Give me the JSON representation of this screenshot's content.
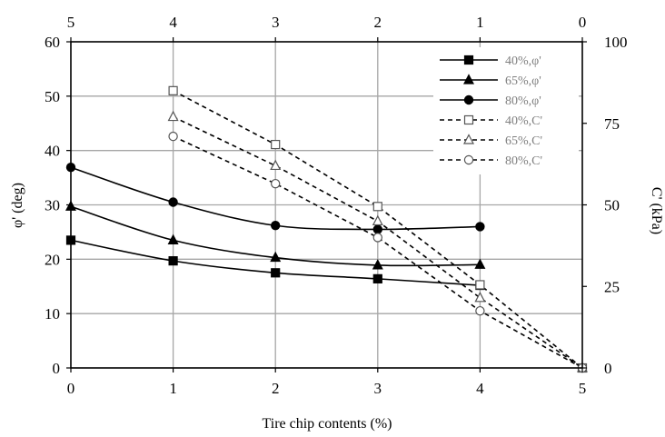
{
  "chart_data": {
    "type": "line",
    "title": "",
    "xlabel": "Tire chip contents (%)",
    "ylabel": "φ' (deg)",
    "y2label": "C' (kPa)",
    "x_bottom_ticks": [
      "0",
      "1",
      "2",
      "3",
      "4",
      "5"
    ],
    "x_top_ticks": [
      "5",
      "4",
      "3",
      "2",
      "1",
      "0"
    ],
    "y_ticks": [
      "0",
      "10",
      "20",
      "30",
      "40",
      "50",
      "60"
    ],
    "y2_ticks": [
      "0",
      "25",
      "50",
      "75",
      "100"
    ],
    "xlim": [
      0,
      5
    ],
    "ylim": [
      0,
      60
    ],
    "y2lim": [
      0,
      100
    ],
    "grid": true,
    "legend_position": "top-right",
    "series": [
      {
        "name": "40%,φ'",
        "axis": "left",
        "line": "solid",
        "marker": "square-filled",
        "x": [
          0,
          1,
          2,
          3,
          4
        ],
        "values": [
          23.5,
          19.7,
          17.5,
          16.4,
          15.2
        ]
      },
      {
        "name": "65%,φ'",
        "axis": "left",
        "line": "solid",
        "marker": "triangle-filled",
        "x": [
          0,
          1,
          2,
          3,
          4
        ],
        "values": [
          29.7,
          23.5,
          20.3,
          18.9,
          19.0
        ]
      },
      {
        "name": "80%,φ'",
        "axis": "left",
        "line": "solid",
        "marker": "circle-filled",
        "x": [
          0,
          1,
          2,
          3,
          4
        ],
        "values": [
          36.9,
          30.5,
          26.2,
          25.5,
          26.0
        ]
      },
      {
        "name": "40%,C'",
        "axis": "right",
        "line": "dashed",
        "marker": "square-open",
        "x": [
          1,
          2,
          3,
          4,
          5
        ],
        "values": [
          85,
          68.5,
          49.5,
          25.5,
          0
        ]
      },
      {
        "name": "65%,C'",
        "axis": "right",
        "line": "dashed",
        "marker": "triangle-open",
        "x": [
          1,
          2,
          3,
          4,
          5
        ],
        "values": [
          77,
          62,
          45,
          21.5,
          0
        ]
      },
      {
        "name": "80%,C'",
        "axis": "right",
        "line": "dashed",
        "marker": "circle-open",
        "x": [
          1,
          2,
          3,
          4,
          5
        ],
        "values": [
          71,
          56.5,
          40,
          17.5,
          0
        ]
      }
    ]
  }
}
